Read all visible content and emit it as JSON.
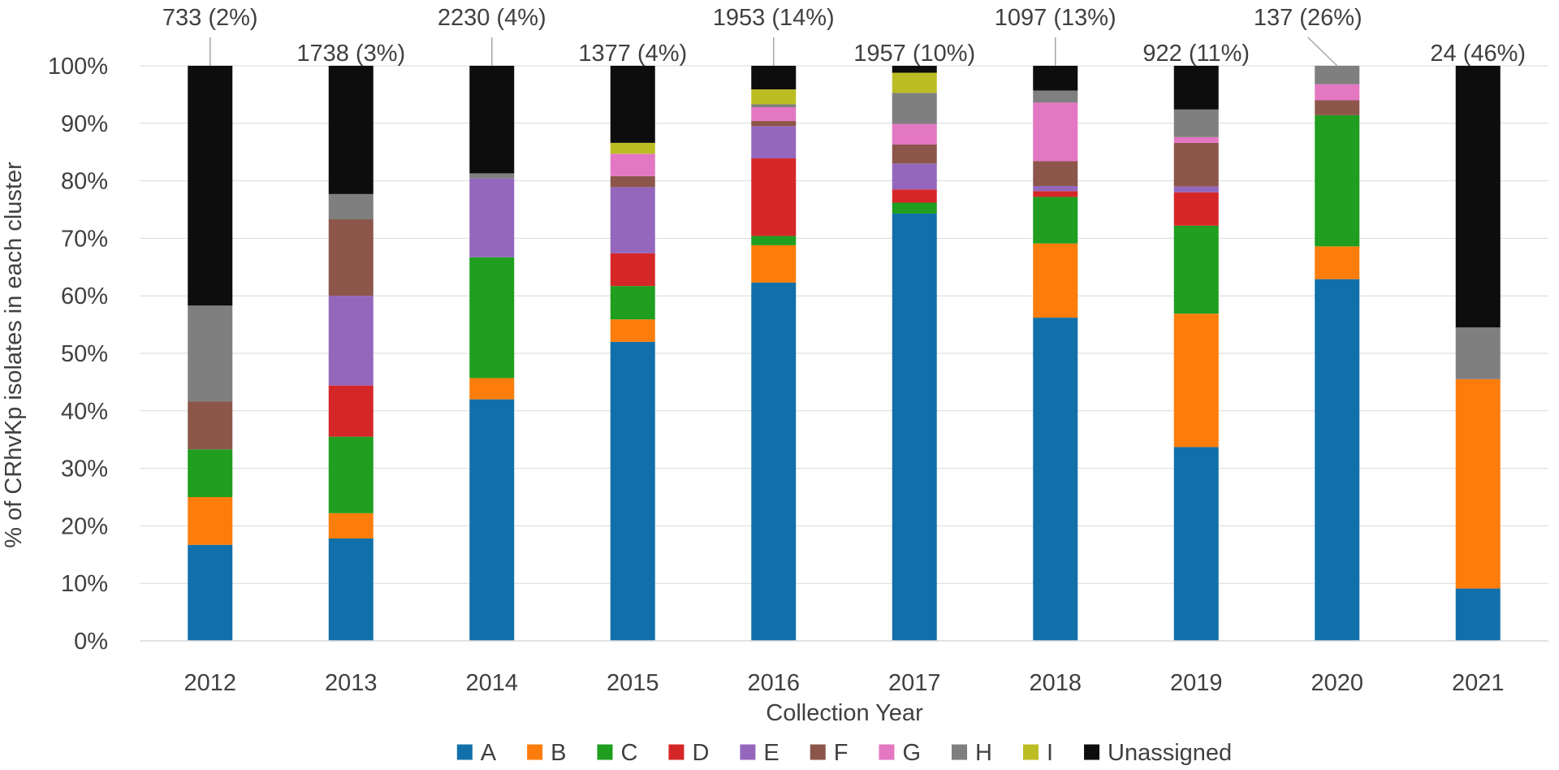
{
  "chart_data": {
    "type": "bar",
    "stacked": true,
    "title": "",
    "xlabel": "Collection Year",
    "ylabel": "% of CRhvKp isolates in each cluster",
    "ylim": [
      0,
      100
    ],
    "yticks": [
      "0%",
      "10%",
      "20%",
      "30%",
      "40%",
      "50%",
      "60%",
      "70%",
      "80%",
      "90%",
      "100%"
    ],
    "categories": [
      "2012",
      "2013",
      "2014",
      "2015",
      "2016",
      "2017",
      "2018",
      "2019",
      "2020",
      "2021"
    ],
    "bar_labels": [
      "733 (2%)",
      "1738 (3%)",
      "2230 (4%)",
      "1377 (4%)",
      "1953 (14%)",
      "1957 (10%)",
      "1097 (13%)",
      "922 (11%)",
      "137 (26%)",
      "24 (46%)"
    ],
    "legend_position": "bottom",
    "series": [
      {
        "name": "A",
        "color": "#1170AA",
        "values": [
          16.7,
          17.8,
          42.0,
          52.0,
          62.3,
          74.3,
          56.2,
          33.7,
          62.9,
          9.1
        ]
      },
      {
        "name": "B",
        "color": "#FC7D0B",
        "values": [
          8.3,
          4.4,
          3.7,
          3.9,
          6.5,
          0,
          12.9,
          23.2,
          5.7,
          36.4
        ]
      },
      {
        "name": "C",
        "color": "#1F9E1F",
        "values": [
          8.3,
          13.3,
          21.0,
          5.8,
          1.6,
          1.9,
          8.1,
          15.3,
          22.8,
          0
        ]
      },
      {
        "name": "D",
        "color": "#D62728",
        "values": [
          0,
          8.9,
          0,
          5.7,
          13.5,
          2.3,
          1.0,
          5.8,
          0,
          0
        ]
      },
      {
        "name": "E",
        "color": "#9467BD",
        "values": [
          0,
          15.6,
          13.7,
          11.5,
          5.6,
          4.5,
          0.9,
          1.0,
          0,
          0
        ]
      },
      {
        "name": "F",
        "color": "#8C564B",
        "values": [
          8.3,
          13.3,
          0,
          1.9,
          0.9,
          3.3,
          4.3,
          7.6,
          2.6,
          0
        ]
      },
      {
        "name": "G",
        "color": "#E377C2",
        "values": [
          0,
          0,
          0,
          3.9,
          2.4,
          3.6,
          10.2,
          1.0,
          2.8,
          0
        ]
      },
      {
        "name": "H",
        "color": "#7F7F7F",
        "values": [
          16.7,
          4.4,
          0.9,
          0,
          0.5,
          5.4,
          2.1,
          4.8,
          3.2,
          9.0
        ]
      },
      {
        "name": "I",
        "color": "#BCBD22",
        "values": [
          0,
          0,
          0,
          1.9,
          2.6,
          3.5,
          0,
          0,
          0,
          0
        ]
      },
      {
        "name": "Unassigned",
        "color": "#0D0D0D",
        "values": [
          41.7,
          22.3,
          18.7,
          13.4,
          4.1,
          1.2,
          4.3,
          7.6,
          0,
          45.5
        ]
      }
    ]
  }
}
